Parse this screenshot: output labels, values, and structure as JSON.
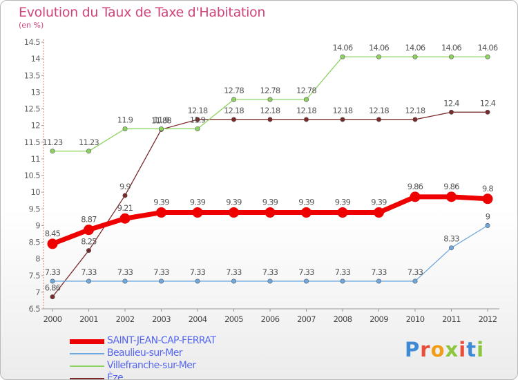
{
  "chart_data": {
    "type": "line",
    "title": "Evolution du Taux de Taxe d'Habitation",
    "subtitle": "(en %)",
    "x": [
      "2000",
      "2001",
      "2002",
      "2003",
      "2004",
      "2005",
      "2006",
      "2007",
      "2008",
      "2009",
      "2010",
      "2011",
      "2012"
    ],
    "y_ticks": [
      "6.5",
      "7",
      "7.5",
      "8",
      "8.5",
      "9",
      "9.5",
      "10",
      "10.5",
      "11",
      "11.5",
      "12",
      "12.5",
      "13",
      "13.5",
      "14",
      "14.5"
    ],
    "ylim": [
      6.5,
      14.5
    ],
    "grid": false,
    "legend_position": "bottom-left",
    "series": [
      {
        "name": "SAINT-JEAN-CAP-FERRAT",
        "color": "#ee0000",
        "values": [
          8.45,
          8.87,
          9.21,
          9.39,
          9.39,
          9.39,
          9.39,
          9.39,
          9.39,
          9.39,
          9.86,
          9.86,
          9.8
        ],
        "labels": [
          "8.45",
          "8.87",
          "9.21",
          "9.39",
          "9.39",
          "9.39",
          "9.39",
          "9.39",
          "9.39",
          "9.39",
          "9.86",
          "9.86",
          "9.8"
        ]
      },
      {
        "name": "Beaulieu-sur-Mer",
        "color": "#6fa8dc",
        "values": [
          7.33,
          7.33,
          7.33,
          7.33,
          7.33,
          7.33,
          7.33,
          7.33,
          7.33,
          7.33,
          7.33,
          8.33,
          9.0
        ],
        "labels": [
          "7.33",
          "7.33",
          "7.33",
          "7.33",
          "7.33",
          "7.33",
          "7.33",
          "7.33",
          "7.33",
          "7.33",
          "7.33",
          "8.33",
          "9"
        ]
      },
      {
        "name": "Villefranche-sur-Mer",
        "color": "#8cd35f",
        "values": [
          11.23,
          11.23,
          11.9,
          11.9,
          11.9,
          12.78,
          12.78,
          12.78,
          14.06,
          14.06,
          14.06,
          14.06,
          14.06
        ],
        "labels": [
          "11.23",
          "11.23",
          "11.9",
          "11.9",
          "11.9",
          "12.78",
          "12.78",
          "12.78",
          "14.06",
          "14.06",
          "14.06",
          "14.06",
          "14.06"
        ]
      },
      {
        "name": "Èze",
        "color": "#7a2a2a",
        "values": [
          6.86,
          8.25,
          9.9,
          11.88,
          12.18,
          12.18,
          12.18,
          12.18,
          12.18,
          12.18,
          12.18,
          12.4,
          12.4
        ],
        "labels": [
          "6.86",
          "8.25",
          "9.9",
          "11.88",
          "12.18",
          "12.18",
          "12.18",
          "12.18",
          "12.18",
          "12.18",
          "12.18",
          "12.4",
          "12.4"
        ]
      }
    ]
  },
  "logo": {
    "text": "Proxiti"
  }
}
